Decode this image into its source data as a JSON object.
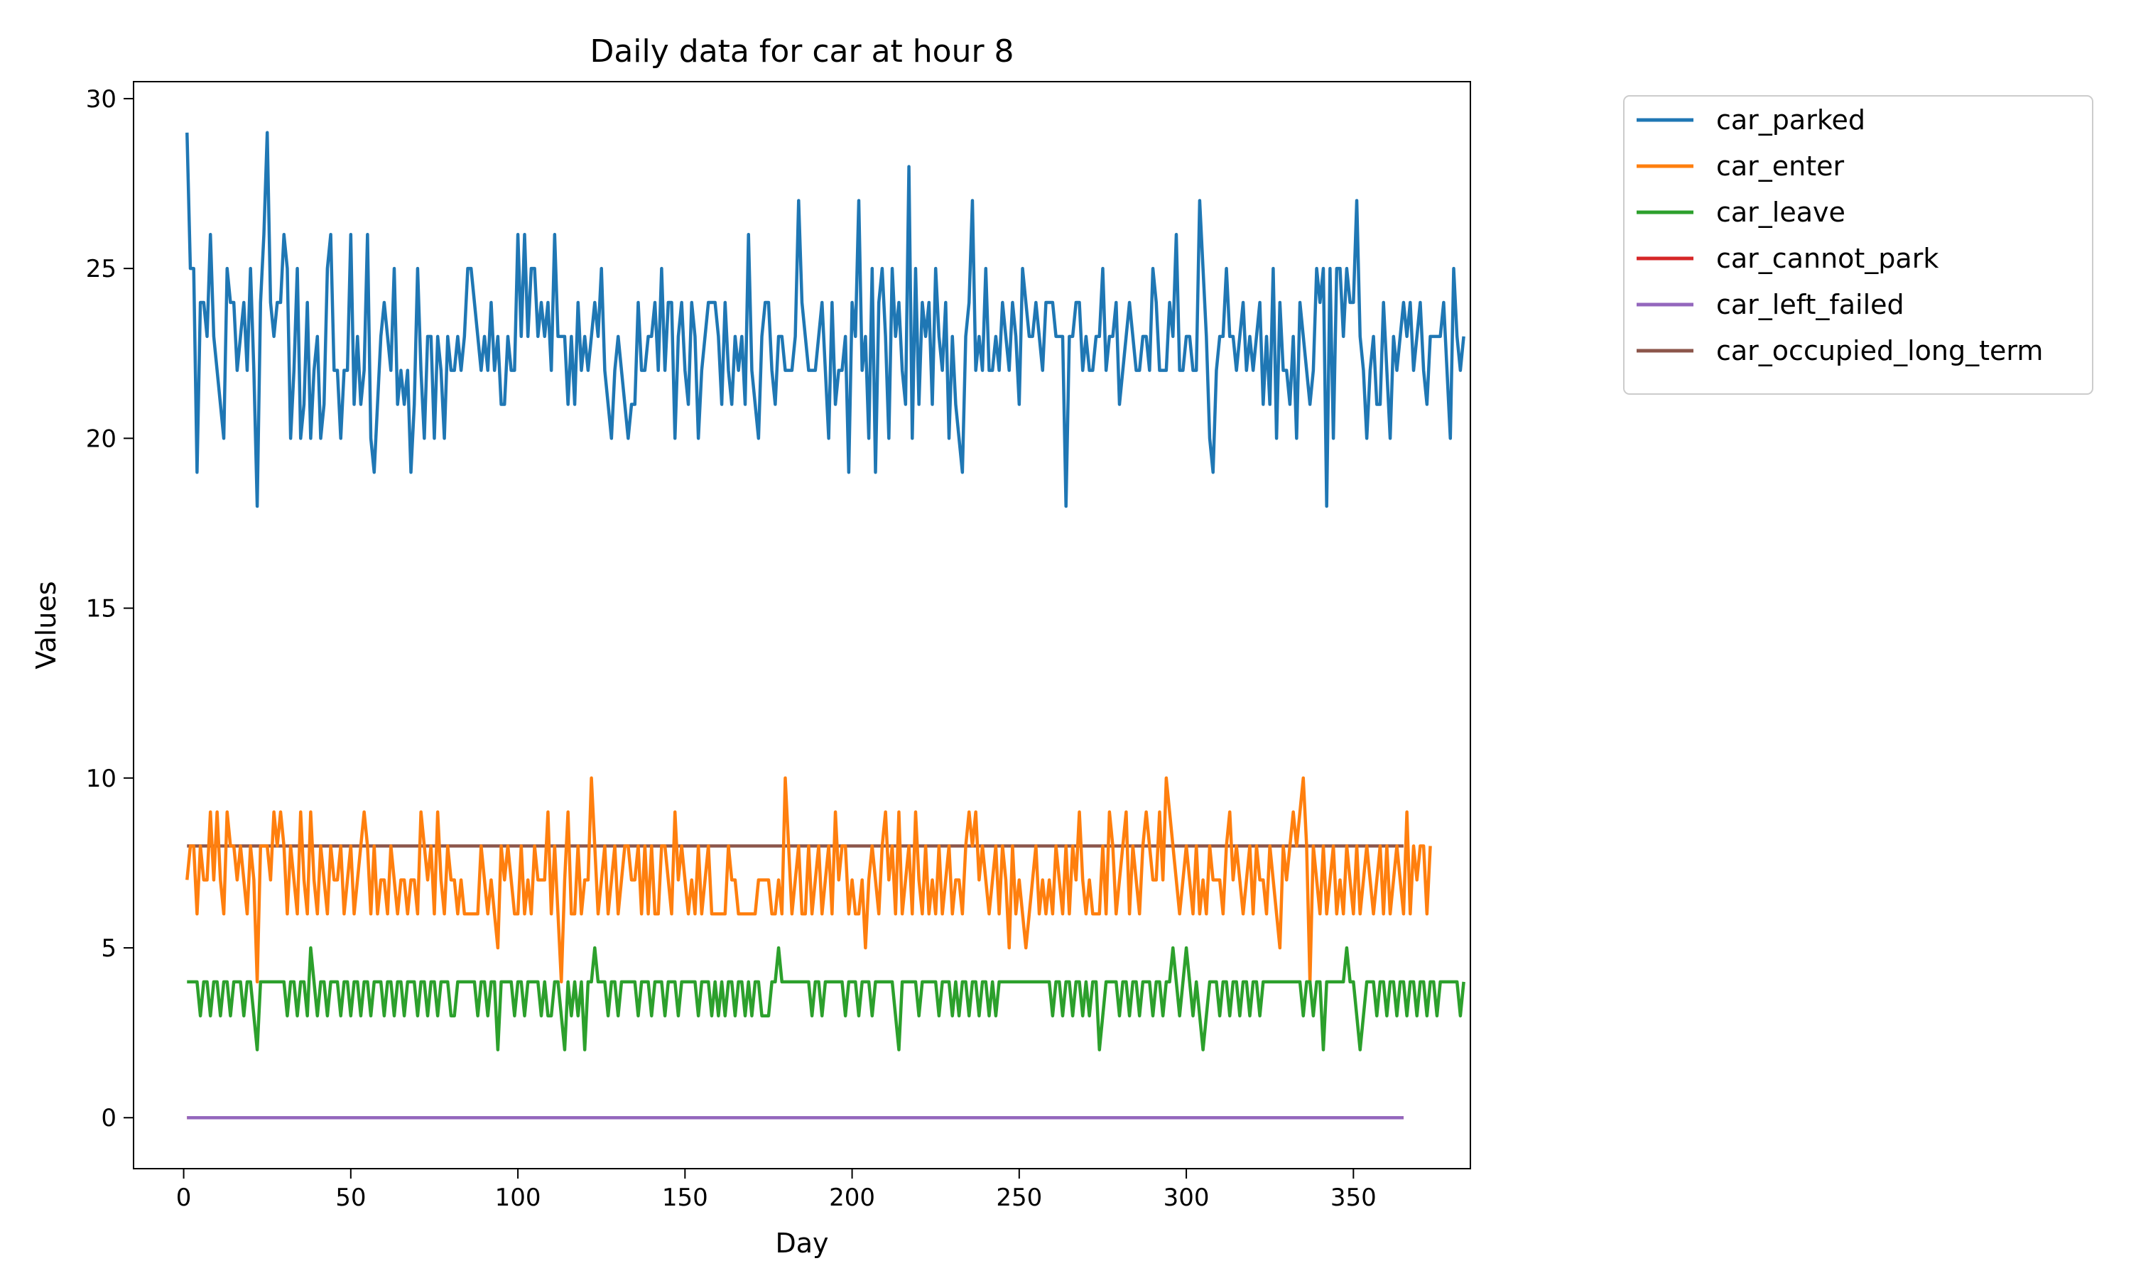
{
  "chart_data": {
    "type": "line",
    "title": "Daily data for car at hour 8",
    "xlabel": "Day",
    "ylabel": "Values",
    "xlim": [
      -15,
      385
    ],
    "ylim": [
      -1.5,
      30.5
    ],
    "xticks": [
      0,
      50,
      100,
      150,
      200,
      250,
      300,
      350
    ],
    "yticks": [
      0,
      5,
      10,
      15,
      20,
      25,
      30
    ],
    "grid": false,
    "legend_position": "outside-top-right",
    "x": {
      "start": 1,
      "end": 365,
      "step": 1
    },
    "series": [
      {
        "name": "car_parked",
        "color": "#1f77b4",
        "values": [
          29,
          25,
          25,
          19,
          24,
          24,
          23,
          26,
          23,
          22,
          21,
          20,
          25,
          24,
          24,
          22,
          23,
          24,
          22,
          25,
          22,
          18,
          24,
          26,
          29,
          24,
          23,
          24,
          24,
          26,
          25,
          20,
          22,
          25,
          20,
          21,
          24,
          20,
          22,
          23,
          20,
          21,
          25,
          26,
          22,
          22,
          20,
          22,
          22,
          26,
          21,
          23,
          21,
          22,
          26,
          20,
          19,
          21,
          23,
          24,
          23,
          22,
          25,
          21,
          22,
          21,
          22,
          19,
          21,
          25,
          22,
          20,
          23,
          23,
          20,
          23,
          22,
          20,
          23,
          22,
          22,
          23,
          22,
          23,
          25,
          25,
          24,
          23,
          22,
          23,
          22,
          24,
          22,
          23,
          21,
          21,
          23,
          22,
          22,
          26,
          23,
          26,
          23,
          25,
          25,
          23,
          24,
          23,
          24,
          22,
          26,
          23,
          23,
          23,
          21,
          23,
          21,
          24,
          22,
          23,
          22,
          23,
          24,
          23,
          25,
          22,
          21,
          20,
          22,
          23,
          22,
          21,
          20,
          21,
          21,
          24,
          22,
          22,
          23,
          23,
          24,
          22,
          25,
          22,
          24,
          24,
          20,
          23,
          24,
          22,
          21,
          24,
          23,
          20,
          22,
          23,
          24,
          24,
          24,
          23,
          21,
          24,
          22,
          21,
          23,
          22,
          23,
          21,
          26,
          22,
          21,
          20,
          23,
          24,
          24,
          22,
          21,
          23,
          23,
          22,
          22,
          22,
          23,
          27,
          24,
          23,
          22,
          22,
          22,
          23,
          24,
          22,
          20,
          24,
          21,
          22,
          22,
          23,
          19,
          24,
          23,
          27,
          22,
          23,
          20,
          25,
          19,
          24,
          25,
          23,
          20,
          25,
          23,
          24,
          22,
          21,
          28,
          20,
          25,
          21,
          24,
          23,
          24,
          21,
          25,
          23,
          22,
          24,
          20,
          23,
          21,
          20,
          19,
          23,
          24,
          27,
          22,
          23,
          22,
          25,
          22,
          22,
          23,
          22,
          24,
          23,
          22,
          24,
          23,
          21,
          25,
          24,
          23,
          23,
          24,
          23,
          22,
          24,
          24,
          24,
          23,
          23,
          23,
          18,
          23,
          23,
          24,
          24,
          22,
          23,
          22,
          22,
          23,
          23,
          25,
          22,
          23,
          23,
          24,
          21,
          22,
          23,
          24,
          23,
          22,
          22,
          23,
          23,
          22,
          25,
          24,
          22,
          22,
          22,
          24,
          23,
          26,
          22,
          22,
          23,
          23,
          22,
          22,
          27,
          25,
          23,
          20,
          19,
          22,
          23,
          23,
          25,
          23,
          23,
          22,
          23,
          24,
          22,
          23,
          22,
          23,
          24,
          21,
          23,
          21,
          25,
          20,
          24,
          22,
          22,
          21,
          23,
          20,
          24,
          23,
          22,
          21,
          22,
          25,
          24,
          25,
          18,
          25,
          20,
          25,
          25,
          23,
          25,
          24,
          24,
          27,
          23,
          22,
          20,
          22,
          23,
          21,
          21,
          24,
          22,
          20,
          23,
          22,
          23,
          24,
          23,
          24,
          22,
          23,
          24,
          22,
          21,
          23,
          23,
          23,
          23,
          24,
          22,
          20,
          25,
          23,
          22,
          23
        ]
      },
      {
        "name": "car_enter",
        "color": "#ff7f0e",
        "values": [
          7,
          8,
          8,
          6,
          8,
          7,
          7,
          9,
          7,
          9,
          7,
          6,
          9,
          8,
          8,
          7,
          8,
          7,
          6,
          8,
          7,
          4,
          8,
          8,
          8,
          7,
          9,
          8,
          9,
          8,
          6,
          8,
          7,
          6,
          9,
          7,
          6,
          9,
          7,
          6,
          8,
          7,
          6,
          8,
          7,
          7,
          8,
          6,
          7,
          8,
          6,
          7,
          8,
          9,
          8,
          6,
          8,
          6,
          7,
          7,
          6,
          8,
          7,
          6,
          7,
          7,
          6,
          7,
          7,
          6,
          9,
          8,
          7,
          8,
          6,
          9,
          7,
          6,
          8,
          7,
          7,
          6,
          7,
          6,
          6,
          6,
          6,
          6,
          8,
          7,
          6,
          7,
          6,
          5,
          8,
          7,
          8,
          7,
          6,
          6,
          8,
          6,
          7,
          6,
          8,
          7,
          7,
          7,
          9,
          6,
          8,
          6,
          4,
          7,
          9,
          6,
          6,
          8,
          6,
          7,
          7,
          10,
          8,
          6,
          7,
          8,
          6,
          7,
          8,
          6,
          7,
          8,
          8,
          7,
          7,
          8,
          6,
          8,
          6,
          8,
          6,
          6,
          8,
          8,
          7,
          6,
          9,
          7,
          8,
          7,
          6,
          7,
          6,
          8,
          6,
          7,
          8,
          6,
          6,
          6,
          6,
          6,
          8,
          7,
          7,
          6,
          6,
          6,
          6,
          6,
          6,
          7,
          7,
          7,
          7,
          6,
          6,
          7,
          6,
          10,
          8,
          6,
          7,
          8,
          6,
          6,
          8,
          6,
          7,
          8,
          6,
          7,
          8,
          6,
          9,
          7,
          8,
          8,
          6,
          7,
          6,
          6,
          7,
          5,
          7,
          8,
          7,
          6,
          8,
          9,
          7,
          8,
          6,
          9,
          6,
          7,
          8,
          6,
          9,
          7,
          6,
          8,
          6,
          7,
          6,
          8,
          6,
          7,
          8,
          6,
          7,
          7,
          6,
          8,
          9,
          8,
          9,
          7,
          8,
          7,
          6,
          7,
          8,
          6,
          8,
          7,
          5,
          8,
          6,
          7,
          6,
          5,
          6,
          7,
          8,
          6,
          7,
          6,
          7,
          6,
          8,
          7,
          6,
          8,
          6,
          8,
          7,
          9,
          7,
          6,
          7,
          6,
          6,
          6,
          8,
          6,
          9,
          8,
          6,
          7,
          8,
          9,
          6,
          8,
          7,
          6,
          8,
          9,
          8,
          7,
          7,
          9,
          7,
          10,
          9,
          8,
          7,
          6,
          7,
          8,
          7,
          6,
          8,
          6,
          7,
          6,
          8,
          7,
          7,
          7,
          6,
          8,
          9,
          7,
          8,
          7,
          6,
          7,
          8,
          6,
          8,
          7,
          7,
          6,
          8,
          7,
          6,
          5,
          8,
          7,
          8,
          9,
          8,
          9,
          10,
          8,
          4,
          8,
          7,
          6,
          8,
          6,
          7,
          8,
          6,
          7,
          6,
          8,
          7,
          6,
          8,
          6,
          7,
          8,
          7,
          6,
          7,
          8,
          6,
          8,
          6,
          7,
          8,
          7,
          6,
          9,
          6,
          8,
          7,
          8,
          8,
          6,
          8
        ]
      },
      {
        "name": "car_leave",
        "color": "#2ca02c",
        "values": [
          4,
          4,
          4,
          4,
          3,
          4,
          4,
          3,
          4,
          4,
          3,
          4,
          4,
          3,
          4,
          4,
          4,
          3,
          4,
          4,
          3,
          2,
          4,
          4,
          4,
          4,
          4,
          4,
          4,
          4,
          3,
          4,
          4,
          3,
          4,
          4,
          3,
          5,
          4,
          3,
          4,
          4,
          3,
          4,
          4,
          4,
          3,
          4,
          4,
          3,
          4,
          4,
          3,
          4,
          4,
          3,
          4,
          4,
          4,
          3,
          4,
          4,
          3,
          4,
          4,
          3,
          4,
          4,
          4,
          3,
          4,
          4,
          3,
          4,
          4,
          3,
          4,
          4,
          4,
          3,
          3,
          4,
          4,
          4,
          4,
          4,
          4,
          3,
          4,
          4,
          3,
          4,
          4,
          2,
          4,
          4,
          4,
          4,
          3,
          4,
          4,
          3,
          4,
          4,
          4,
          4,
          3,
          4,
          3,
          3,
          4,
          4,
          3,
          2,
          4,
          3,
          4,
          3,
          4,
          2,
          4,
          4,
          5,
          4,
          4,
          4,
          3,
          4,
          4,
          3,
          4,
          4,
          4,
          4,
          4,
          3,
          4,
          4,
          4,
          3,
          4,
          4,
          4,
          3,
          4,
          4,
          4,
          3,
          4,
          4,
          4,
          4,
          4,
          3,
          4,
          4,
          4,
          3,
          4,
          3,
          4,
          3,
          4,
          4,
          3,
          4,
          4,
          3,
          4,
          3,
          4,
          4,
          3,
          3,
          3,
          4,
          4,
          5,
          4,
          4,
          4,
          4,
          4,
          4,
          4,
          4,
          4,
          3,
          4,
          4,
          3,
          4,
          4,
          4,
          4,
          4,
          4,
          3,
          4,
          4,
          4,
          3,
          4,
          4,
          4,
          3,
          4,
          4,
          4,
          4,
          4,
          4,
          3,
          2,
          4,
          4,
          4,
          4,
          4,
          3,
          4,
          4,
          4,
          4,
          4,
          3,
          4,
          4,
          4,
          3,
          4,
          3,
          4,
          4,
          3,
          4,
          4,
          3,
          4,
          4,
          3,
          4,
          3,
          4,
          4,
          4,
          4,
          4,
          4,
          4,
          4,
          4,
          4,
          4,
          4,
          4,
          4,
          4,
          4,
          3,
          4,
          4,
          3,
          4,
          4,
          3,
          4,
          4,
          3,
          4,
          3,
          4,
          4,
          2,
          3,
          4,
          4,
          4,
          4,
          3,
          4,
          4,
          3,
          4,
          4,
          3,
          4,
          4,
          4,
          3,
          4,
          4,
          3,
          4,
          4,
          5,
          4,
          3,
          4,
          5,
          4,
          3,
          4,
          3,
          2,
          3,
          4,
          4,
          4,
          3,
          4,
          4,
          3,
          4,
          4,
          3,
          4,
          4,
          3,
          4,
          4,
          3,
          4,
          4,
          4,
          4,
          4,
          4,
          4,
          4,
          4,
          4,
          4,
          4,
          3,
          4,
          4,
          3,
          4,
          4,
          2,
          4,
          4,
          4,
          4,
          4,
          4,
          5,
          4,
          4,
          3,
          2,
          3,
          4,
          4,
          4,
          3,
          4,
          4,
          3,
          4,
          4,
          3,
          4,
          4,
          3,
          4,
          4,
          3,
          4,
          4,
          3,
          4,
          4,
          3,
          4,
          4,
          4,
          4,
          4,
          4,
          3,
          4
        ]
      },
      {
        "name": "car_cannot_park",
        "color": "#d62728",
        "constant": 0
      },
      {
        "name": "car_left_failed",
        "color": "#9467bd",
        "constant": 0
      },
      {
        "name": "car_occupied_long_term",
        "color": "#8c564b",
        "constant": 8
      }
    ]
  }
}
